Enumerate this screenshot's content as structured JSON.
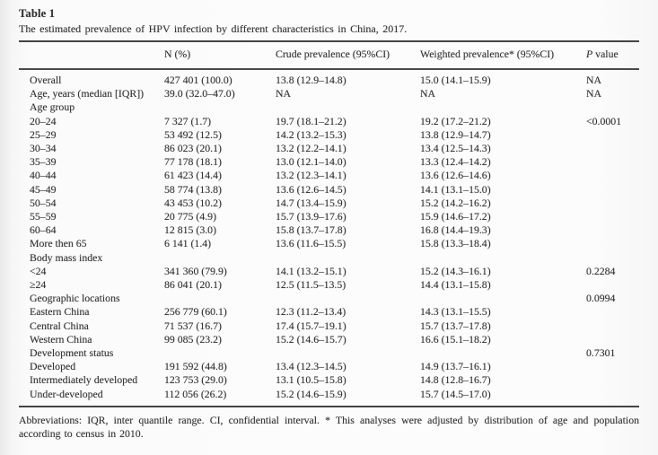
{
  "colors": {
    "background": "#fbfbfb",
    "text": "#333232",
    "rule": "#454545"
  },
  "table": {
    "label": "Table 1",
    "caption": "The estimated prevalence of HPV infection by different characteristics in China, 2017.",
    "columns": [
      {
        "label": ""
      },
      {
        "label": "N (%)"
      },
      {
        "label": "Crude prevalence (95%CI)"
      },
      {
        "label": "Weighted prevalence* (95%CI)"
      },
      {
        "label": "P value",
        "italic_part": "P",
        "rest_part": " value"
      }
    ],
    "rows": [
      {
        "label": "Overall",
        "n": "427 401 (100.0)",
        "crude": "13.8 (12.9–14.8)",
        "weighted": "15.0 (14.1–15.9)",
        "p": "NA"
      },
      {
        "label": "Age, years (median [IQR])",
        "n": "39.0 (32.0–47.0)",
        "crude": "NA",
        "weighted": "NA",
        "p": "NA"
      },
      {
        "label": "Age group",
        "n": "",
        "crude": "",
        "weighted": "",
        "p": ""
      },
      {
        "label": "20–24",
        "n": "7 327 (1.7)",
        "crude": "19.7 (18.1–21.2)",
        "weighted": "19.2 (17.2–21.2)",
        "p": "<0.0001"
      },
      {
        "label": "25–29",
        "n": "53 492 (12.5)",
        "crude": "14.2 (13.2–15.3)",
        "weighted": "13.8 (12.9–14.7)",
        "p": ""
      },
      {
        "label": "30–34",
        "n": "86 023 (20.1)",
        "crude": "13.2 (12.2–14.1)",
        "weighted": "13.4 (12.5–14.3)",
        "p": ""
      },
      {
        "label": "35–39",
        "n": "77 178 (18.1)",
        "crude": "13.0 (12.1–14.0)",
        "weighted": "13.3 (12.4–14.2)",
        "p": ""
      },
      {
        "label": "40–44",
        "n": "61 423 (14.4)",
        "crude": "13.2 (12.3–14.1)",
        "weighted": "13.6 (12.6–14.6)",
        "p": ""
      },
      {
        "label": "45–49",
        "n": "58 774 (13.8)",
        "crude": "13.6 (12.6–14.5)",
        "weighted": "14.1 (13.1–15.0)",
        "p": ""
      },
      {
        "label": "50–54",
        "n": "43 453 (10.2)",
        "crude": "14.7 (13.4–15.9)",
        "weighted": "15.2 (14.2–16.2)",
        "p": ""
      },
      {
        "label": "55–59",
        "n": "20 775 (4.9)",
        "crude": "15.7 (13.9–17.6)",
        "weighted": "15.9 (14.6–17.2)",
        "p": ""
      },
      {
        "label": "60–64",
        "n": "12 815 (3.0)",
        "crude": "15.8 (13.7–17.8)",
        "weighted": "16.8 (14.4–19.3)",
        "p": ""
      },
      {
        "label": "More then 65",
        "n": "6 141 (1.4)",
        "crude": "13.6 (11.6–15.5)",
        "weighted": "15.8 (13.3–18.4)",
        "p": ""
      },
      {
        "label": "Body mass index",
        "n": "",
        "crude": "",
        "weighted": "",
        "p": ""
      },
      {
        "label": "<24",
        "n": "341 360 (79.9)",
        "crude": "14.1 (13.2–15.1)",
        "weighted": "15.2 (14.3–16.1)",
        "p": "0.2284"
      },
      {
        "label": "≥24",
        "n": "86 041 (20.1)",
        "crude": "12.5 (11.5–13.5)",
        "weighted": "14.4 (13.1–15.8)",
        "p": ""
      },
      {
        "label": "Geographic locations",
        "n": "",
        "crude": "",
        "weighted": "",
        "p": "0.0994"
      },
      {
        "label": "Eastern China",
        "n": "256 779 (60.1)",
        "crude": "12.3 (11.2–13.4)",
        "weighted": "14.3 (13.1–15.5)",
        "p": ""
      },
      {
        "label": "Central China",
        "n": "71 537 (16.7)",
        "crude": "17.4 (15.7–19.1)",
        "weighted": "15.7 (13.7–17.8)",
        "p": ""
      },
      {
        "label": "Western China",
        "n": "99 085 (23.2)",
        "crude": "15.2 (14.6–15.7)",
        "weighted": "16.6 (15.1–18.2)",
        "p": ""
      },
      {
        "label": "Development status",
        "n": "",
        "crude": "",
        "weighted": "",
        "p": "0.7301"
      },
      {
        "label": "Developed",
        "n": "191 592 (44.8)",
        "crude": "13.4 (12.3–14.5)",
        "weighted": "14.9 (13.7–16.1)",
        "p": ""
      },
      {
        "label": "Intermediately developed",
        "n": "123 753 (29.0)",
        "crude": "13.1 (10.5–15.8)",
        "weighted": "14.8 (12.8–16.7)",
        "p": ""
      },
      {
        "label": "Under-developed",
        "n": "112 056 (26.2)",
        "crude": "15.2 (14.6–15.9)",
        "weighted": "15.7 (14.5–17.0)",
        "p": ""
      }
    ],
    "footnote": "Abbreviations: IQR, inter quantile range. CI, confidential interval. * This analyses were adjusted by distribution of age and population according to census in 2010."
  }
}
